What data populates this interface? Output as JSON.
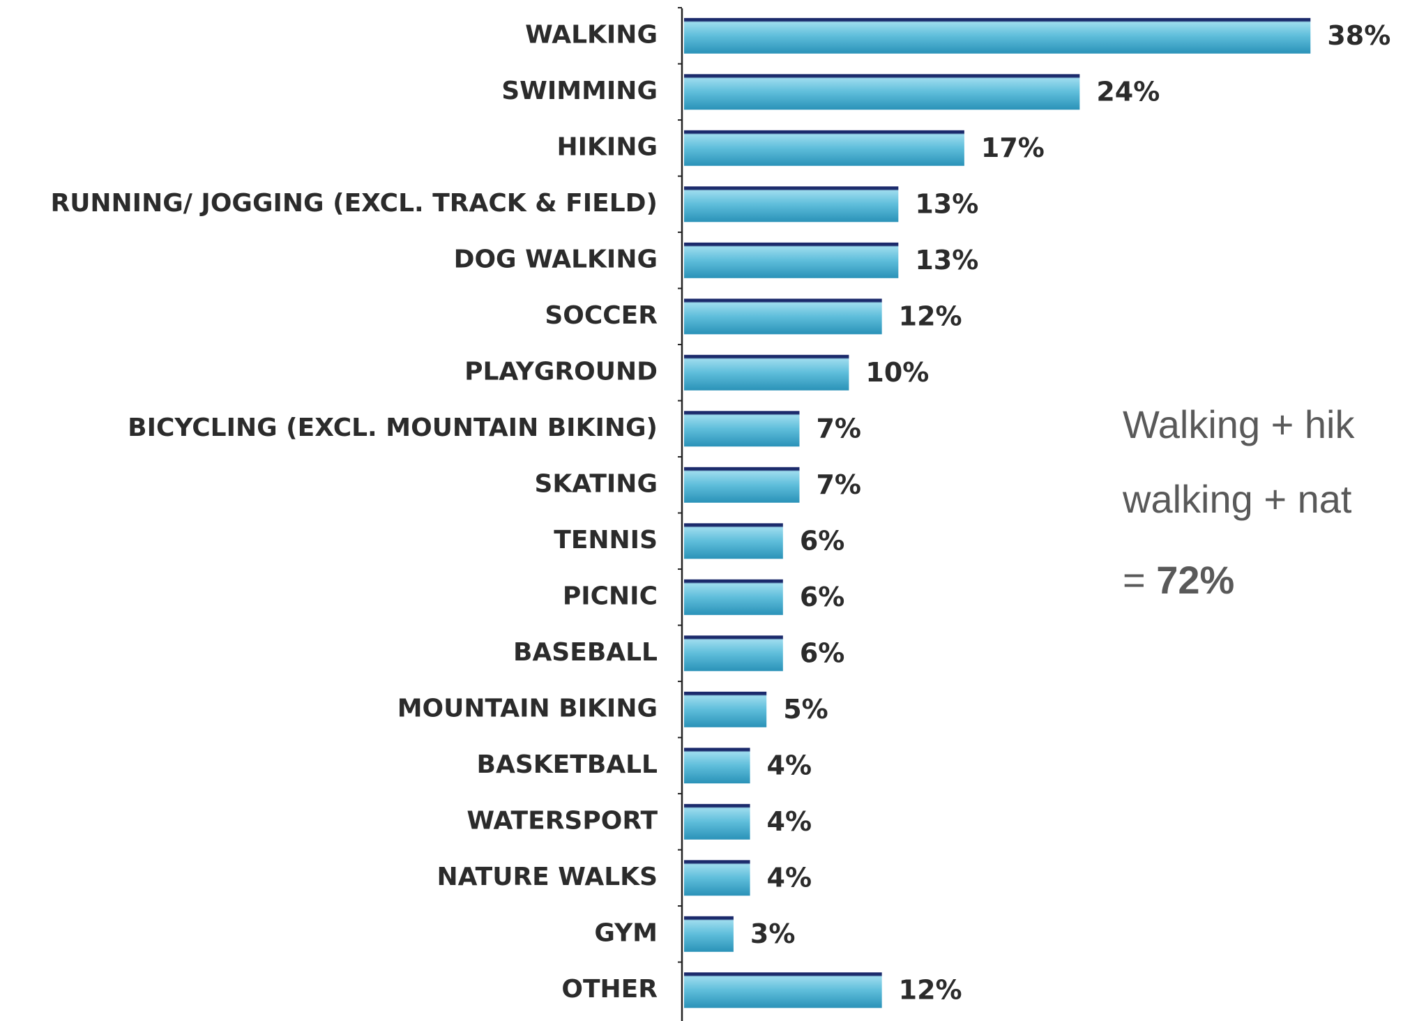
{
  "chart_data": {
    "type": "bar",
    "orientation": "horizontal",
    "categories": [
      "WALKING",
      "SWIMMING",
      "HIKING",
      "RUNNING/ JOGGING (EXCL. TRACK & FIELD)",
      "DOG WALKING",
      "SOCCER",
      "PLAYGROUND",
      "BICYCLING (EXCL. MOUNTAIN BIKING)",
      "SKATING",
      "TENNIS",
      "PICNIC",
      "BASEBALL",
      "MOUNTAIN BIKING",
      "BASKETBALL",
      "WATERSPORT",
      "NATURE WALKS",
      "GYM",
      "OTHER"
    ],
    "values": [
      38,
      24,
      17,
      13,
      13,
      12,
      10,
      7,
      7,
      6,
      6,
      6,
      5,
      4,
      4,
      4,
      3,
      12
    ],
    "value_labels": [
      "38%",
      "24%",
      "17%",
      "13%",
      "13%",
      "12%",
      "10%",
      "7%",
      "7%",
      "6%",
      "6%",
      "6%",
      "5%",
      "4%",
      "4%",
      "4%",
      "3%",
      "12%"
    ],
    "color": "#3aa3c6",
    "annotation_lines": [
      "Walking + hik",
      "walking + nat",
      "="
    ],
    "annotation_total": "72%"
  }
}
